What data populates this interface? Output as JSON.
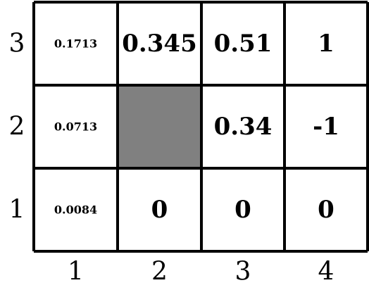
{
  "grid": {
    "columns": 4,
    "rows": 3,
    "x_labels": [
      "1",
      "2",
      "3",
      "4"
    ],
    "y_labels": [
      "3",
      "2",
      "1"
    ],
    "blocked_cell": {
      "col": 2,
      "row": 2
    },
    "blocked_color": "#808080",
    "cells": [
      {
        "col": 1,
        "row": 3,
        "value": "0.1713",
        "size": "small"
      },
      {
        "col": 2,
        "row": 3,
        "value": "0.345",
        "size": "large"
      },
      {
        "col": 3,
        "row": 3,
        "value": "0.51",
        "size": "large"
      },
      {
        "col": 4,
        "row": 3,
        "value": "1",
        "size": "large"
      },
      {
        "col": 1,
        "row": 2,
        "value": "0.0713",
        "size": "small"
      },
      {
        "col": 3,
        "row": 2,
        "value": "0.34",
        "size": "large"
      },
      {
        "col": 4,
        "row": 2,
        "value": "-1",
        "size": "large"
      },
      {
        "col": 1,
        "row": 1,
        "value": "0.0084",
        "size": "small"
      },
      {
        "col": 2,
        "row": 1,
        "value": "0",
        "size": "large"
      },
      {
        "col": 3,
        "row": 1,
        "value": "0",
        "size": "large"
      },
      {
        "col": 4,
        "row": 1,
        "value": "0",
        "size": "large"
      }
    ]
  }
}
